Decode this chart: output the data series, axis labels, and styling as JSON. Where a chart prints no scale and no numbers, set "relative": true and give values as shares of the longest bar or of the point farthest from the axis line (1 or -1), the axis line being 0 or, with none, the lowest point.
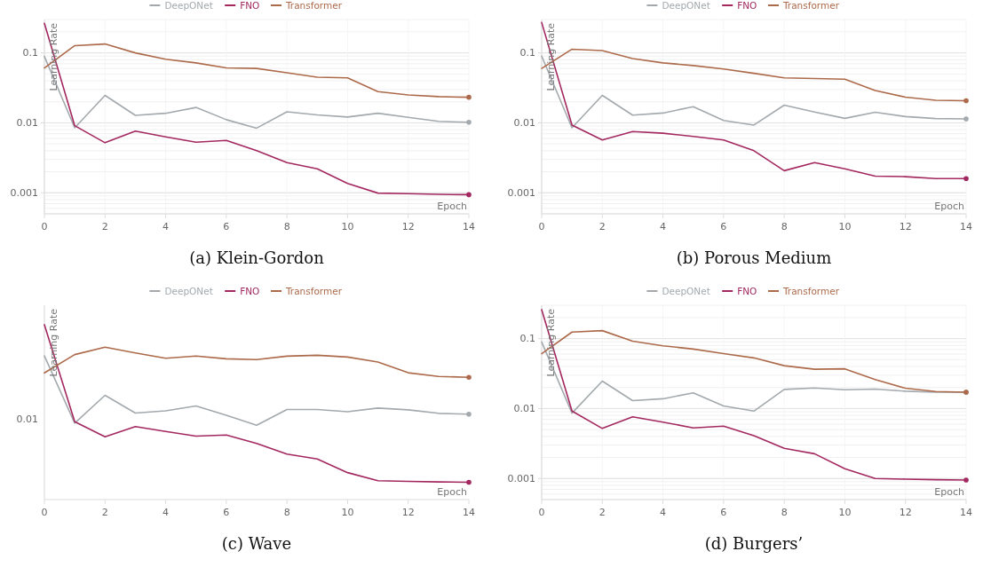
{
  "chart_data": [
    {
      "type": "line",
      "title": "(a) Klein-Gordon",
      "xlabel": "Epoch",
      "ylabel": "Learning Rate",
      "log": "y",
      "grid": true,
      "legend": "top",
      "xlim": [
        0,
        14
      ],
      "xticks": [
        0,
        2,
        4,
        6,
        8,
        10,
        12,
        14
      ],
      "ylim": [
        0.0005,
        0.3
      ],
      "yticks": [
        0.001,
        0.01,
        0.1
      ],
      "x": [
        0,
        1,
        2,
        3,
        4,
        5,
        6,
        7,
        8,
        9,
        10,
        11,
        12,
        13,
        14
      ],
      "series": [
        {
          "name": "DeepONet",
          "color": "#a3a9ad",
          "values": [
            0.089,
            0.0085,
            0.0247,
            0.0128,
            0.0137,
            0.0166,
            0.0111,
            0.0084,
            0.0144,
            0.013,
            0.0121,
            0.0137,
            0.012,
            0.0105,
            0.0102
          ]
        },
        {
          "name": "FNO",
          "color": "#a3285f",
          "values": [
            0.265,
            0.0091,
            0.0052,
            0.0076,
            0.0063,
            0.0053,
            0.0056,
            0.004,
            0.0027,
            0.0022,
            0.00136,
            0.00099,
            0.00097,
            0.00095,
            0.00094
          ]
        },
        {
          "name": "Transformer",
          "color": "#ad6a4b",
          "values": [
            0.061,
            0.127,
            0.134,
            0.1,
            0.081,
            0.072,
            0.061,
            0.06,
            0.052,
            0.045,
            0.044,
            0.028,
            0.025,
            0.0237,
            0.0232
          ]
        }
      ]
    },
    {
      "type": "line",
      "title": "(b) Porous Medium",
      "xlabel": "Epoch",
      "ylabel": "Learning Rate",
      "log": "y",
      "grid": true,
      "legend": "top",
      "xlim": [
        0,
        14
      ],
      "xticks": [
        0,
        2,
        4,
        6,
        8,
        10,
        12,
        14
      ],
      "ylim": [
        0.0005,
        0.3
      ],
      "yticks": [
        0.001,
        0.01,
        0.1
      ],
      "x": [
        0,
        1,
        2,
        3,
        4,
        5,
        6,
        7,
        8,
        9,
        10,
        11,
        12,
        13,
        14
      ],
      "series": [
        {
          "name": "DeepONet",
          "color": "#a3a9ad",
          "values": [
            0.09,
            0.0085,
            0.0247,
            0.0129,
            0.0138,
            0.017,
            0.0108,
            0.0093,
            0.0179,
            0.0143,
            0.0116,
            0.0142,
            0.0123,
            0.0115,
            0.0114
          ]
        },
        {
          "name": "FNO",
          "color": "#a3285f",
          "values": [
            0.272,
            0.0093,
            0.0057,
            0.0075,
            0.0071,
            0.0064,
            0.0057,
            0.004,
            0.00207,
            0.0027,
            0.0022,
            0.00173,
            0.0017,
            0.0016,
            0.0016
          ]
        },
        {
          "name": "Transformer",
          "color": "#ad6a4b",
          "values": [
            0.06,
            0.113,
            0.108,
            0.083,
            0.072,
            0.066,
            0.059,
            0.051,
            0.044,
            0.043,
            0.042,
            0.029,
            0.0233,
            0.021,
            0.0207
          ]
        }
      ]
    },
    {
      "type": "line",
      "title": "(c) Wave",
      "xlabel": "Epoch",
      "ylabel": "Learning Rate",
      "relative": true,
      "legend": "top",
      "annotations": [
        "0.01"
      ],
      "xlim": [
        0,
        14
      ],
      "xticks": [
        0,
        2,
        4,
        6,
        8,
        10,
        12,
        14
      ],
      "x": [
        0,
        1,
        2,
        3,
        4,
        5,
        6,
        7,
        8,
        9,
        10,
        11,
        12,
        13,
        14
      ],
      "series": [
        {
          "name": "DeepONet",
          "color": "#a3a9ad",
          "values": [
            0.821,
            0.437,
            0.596,
            0.495,
            0.507,
            0.535,
            0.482,
            0.425,
            0.515,
            0.515,
            0.502,
            0.523,
            0.513,
            0.493,
            0.488
          ]
        },
        {
          "name": "FNO",
          "color": "#a3285f",
          "values": [
            1,
            0.445,
            0.359,
            0.417,
            0.389,
            0.363,
            0.369,
            0.321,
            0.26,
            0.232,
            0.154,
            0.108,
            0.104,
            0.101,
            0.099
          ]
        },
        {
          "name": "Transformer",
          "color": "#ad6a4b",
          "values": [
            0.724,
            0.829,
            0.871,
            0.838,
            0.808,
            0.821,
            0.805,
            0.8,
            0.82,
            0.825,
            0.815,
            0.786,
            0.725,
            0.704,
            0.699
          ]
        }
      ]
    },
    {
      "type": "line",
      "title": "(d) Burgers’",
      "xlabel": "Epoch",
      "ylabel": "Learning Rate",
      "log": "y",
      "grid": true,
      "legend": "top",
      "xlim": [
        0,
        14
      ],
      "xticks": [
        0,
        2,
        4,
        6,
        8,
        10,
        12,
        14
      ],
      "ylim": [
        0.0005,
        0.3
      ],
      "yticks": [
        0.001,
        0.01,
        0.1
      ],
      "x": [
        0,
        1,
        2,
        3,
        4,
        5,
        6,
        7,
        8,
        9,
        10,
        11,
        12,
        13,
        14
      ],
      "series": [
        {
          "name": "DeepONet",
          "color": "#a3a9ad",
          "values": [
            0.0895,
            0.0086,
            0.0247,
            0.013,
            0.0138,
            0.0168,
            0.0109,
            0.0092,
            0.0188,
            0.0197,
            0.0186,
            0.019,
            0.0177,
            0.0171,
            0.0171
          ]
        },
        {
          "name": "FNO",
          "color": "#a3285f",
          "values": [
            0.26,
            0.0092,
            0.0052,
            0.0076,
            0.0064,
            0.0053,
            0.0056,
            0.0041,
            0.0027,
            0.00226,
            0.00138,
            0.001,
            0.00098,
            0.00096,
            0.00095
          ]
        },
        {
          "name": "Transformer",
          "color": "#ad6a4b",
          "values": [
            0.061,
            0.124,
            0.13,
            0.092,
            0.079,
            0.071,
            0.061,
            0.053,
            0.041,
            0.0365,
            0.037,
            0.026,
            0.0195,
            0.0175,
            0.0171
          ]
        }
      ]
    }
  ]
}
